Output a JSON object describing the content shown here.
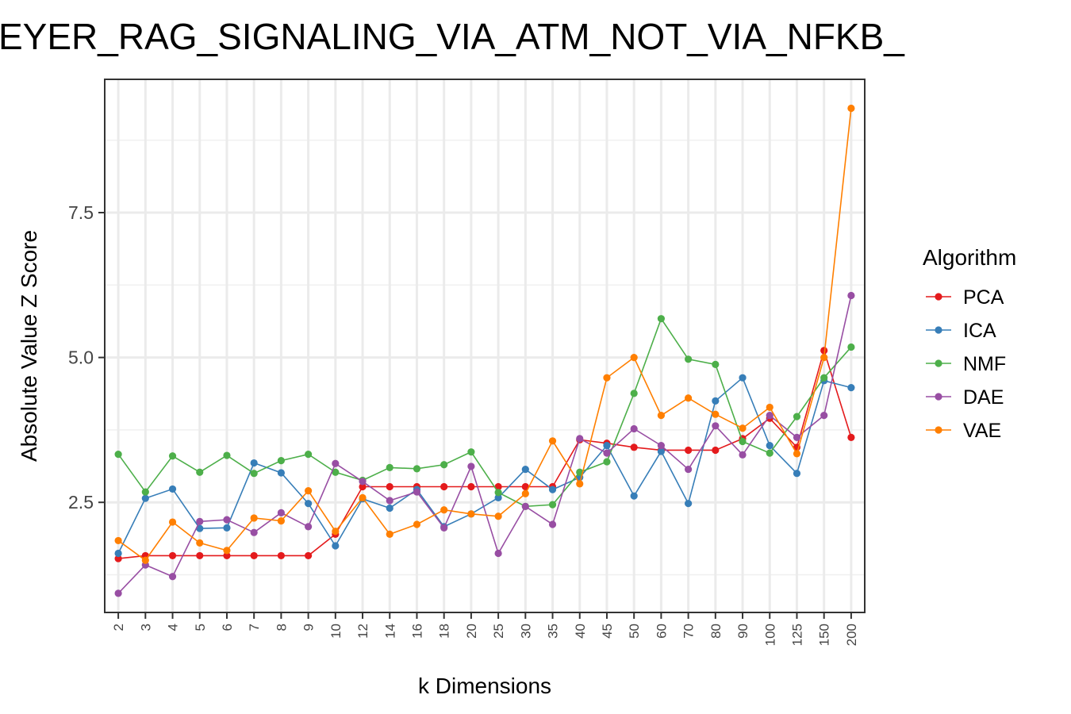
{
  "chart_data": {
    "type": "line",
    "title": "EYER_RAG_SIGNALING_VIA_ATM_NOT_VIA_NFKB_",
    "xlabel": "k Dimensions",
    "ylabel": "Absolute Value Z Score",
    "categories": [
      "2",
      "3",
      "4",
      "5",
      "6",
      "7",
      "8",
      "9",
      "10",
      "12",
      "14",
      "16",
      "18",
      "20",
      "25",
      "30",
      "35",
      "40",
      "45",
      "50",
      "60",
      "70",
      "80",
      "90",
      "100",
      "125",
      "150",
      "200"
    ],
    "y_ticks": [
      "2.5",
      "5.0",
      "7.5"
    ],
    "ylim": [
      0.6,
      9.8
    ],
    "grid": true,
    "legend_title": "Algorithm",
    "legend_position": "right",
    "series": [
      {
        "name": "PCA",
        "color": "#E41A1C",
        "values": [
          1.53,
          1.58,
          1.58,
          1.58,
          1.58,
          1.58,
          1.58,
          1.58,
          1.95,
          2.77,
          2.77,
          2.77,
          2.77,
          2.77,
          2.77,
          2.77,
          2.77,
          3.58,
          3.52,
          3.45,
          3.4,
          3.4,
          3.4,
          3.6,
          3.95,
          3.45,
          5.12,
          3.62
        ]
      },
      {
        "name": "ICA",
        "color": "#377EB8",
        "values": [
          1.62,
          2.57,
          2.73,
          2.05,
          2.06,
          3.18,
          3.01,
          2.48,
          1.75,
          2.56,
          2.4,
          2.72,
          2.08,
          2.3,
          2.58,
          3.07,
          2.72,
          2.93,
          3.48,
          2.61,
          3.38,
          2.48,
          4.25,
          4.65,
          3.48,
          3.0,
          4.6,
          4.48
        ]
      },
      {
        "name": "NMF",
        "color": "#4DAF4A",
        "values": [
          3.33,
          2.68,
          3.3,
          3.02,
          3.31,
          3.0,
          3.22,
          3.33,
          3.02,
          2.88,
          3.1,
          3.08,
          3.15,
          3.37,
          2.67,
          2.43,
          2.46,
          3.02,
          3.2,
          4.38,
          5.67,
          4.97,
          4.88,
          3.55,
          3.35,
          3.98,
          4.65,
          5.18
        ]
      },
      {
        "name": "DAE",
        "color": "#984EA3",
        "values": [
          0.93,
          1.42,
          1.22,
          2.17,
          2.2,
          1.98,
          2.32,
          2.08,
          3.17,
          2.86,
          2.53,
          2.68,
          2.06,
          3.12,
          1.62,
          2.43,
          2.12,
          3.6,
          3.35,
          3.77,
          3.48,
          3.07,
          3.82,
          3.32,
          4.0,
          3.62,
          4.0,
          6.07
        ]
      },
      {
        "name": "VAE",
        "color": "#FF7F00",
        "values": [
          1.84,
          1.5,
          2.16,
          1.8,
          1.67,
          2.23,
          2.18,
          2.7,
          2.0,
          2.58,
          1.95,
          2.12,
          2.37,
          2.3,
          2.26,
          2.65,
          3.56,
          2.82,
          4.65,
          5.0,
          4.0,
          4.3,
          4.02,
          3.78,
          4.14,
          3.34,
          5.0,
          9.3
        ]
      }
    ]
  }
}
